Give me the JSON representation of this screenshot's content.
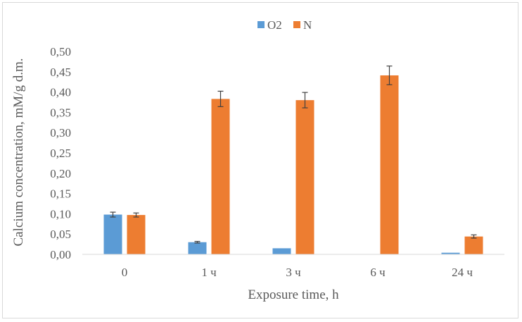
{
  "chart_data": {
    "type": "bar",
    "categories": [
      "0",
      "1 ч",
      "3 ч",
      "6 ч",
      "24 ч"
    ],
    "series": [
      {
        "name": "O2",
        "color": "#5b9bd5",
        "values": [
          0.098,
          0.03,
          0.015,
          0.0,
          0.004
        ],
        "errors": [
          0.006,
          0.002,
          0.0,
          0.0,
          0.0
        ]
      },
      {
        "name": "N",
        "color": "#ed7d31",
        "values": [
          0.097,
          0.383,
          0.38,
          0.441,
          0.044
        ],
        "errors": [
          0.005,
          0.019,
          0.019,
          0.023,
          0.004
        ]
      }
    ],
    "yticks": [
      "0,00",
      "0,05",
      "0,10",
      "0,15",
      "0,20",
      "0,25",
      "0,30",
      "0,35",
      "0,40",
      "0,45",
      "0,50"
    ],
    "ylim": [
      0,
      0.5
    ],
    "xlabel": "Exposure time, h",
    "ylabel": "Calcium concentration, mM/g d.m.",
    "legend_position": "top",
    "grid": false
  }
}
